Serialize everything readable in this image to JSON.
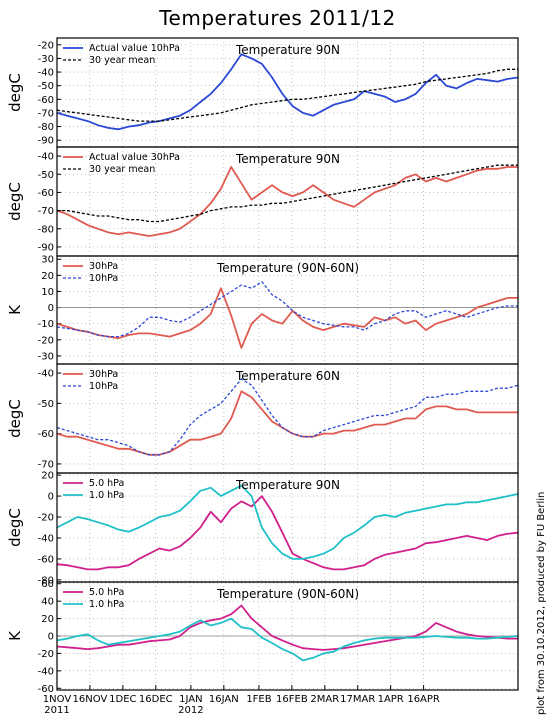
{
  "title": "Temperatures 2011/12",
  "credit": "plot from 30.10.2012, produced by FU Berlin",
  "colors": {
    "blue": "#2b49d6",
    "red": "#e05a50",
    "dash_black": "#000000",
    "dash_blue": "#2b49d6",
    "magenta": "#d0208c",
    "cyan": "#1fc0c8"
  },
  "chart_data": [
    {
      "type": "line",
      "ylabel": "degC",
      "panel_title": "Temperature 90N",
      "ylim": [
        -95,
        -15
      ],
      "yticks": [
        -90,
        -80,
        -70,
        -60,
        -50,
        -40,
        -30,
        -20
      ],
      "series": [
        {
          "name": "Actual value 10hPa",
          "style": "blue",
          "values": [
            -70,
            -72,
            -74,
            -76,
            -79,
            -81,
            -82,
            -80,
            -79,
            -77,
            -76,
            -74,
            -72,
            -68,
            -62,
            -56,
            -48,
            -38,
            -27,
            -30,
            -34,
            -44,
            -56,
            -65,
            -70,
            -72,
            -68,
            -64,
            -62,
            -60,
            -54,
            -56,
            -58,
            -62,
            -60,
            -56,
            -48,
            -42,
            -50,
            -52,
            -48,
            -45,
            -46,
            -47,
            -45,
            -44
          ]
        },
        {
          "name": "30 year mean",
          "style": "dash_black",
          "values": [
            -68,
            -69,
            -70,
            -71,
            -72,
            -73,
            -74,
            -75,
            -76,
            -76,
            -76,
            -75,
            -74,
            -73,
            -72,
            -71,
            -70,
            -68,
            -66,
            -64,
            -63,
            -62,
            -61,
            -60,
            -60,
            -59,
            -58,
            -57,
            -56,
            -55,
            -54,
            -53,
            -52,
            -51,
            -50,
            -49,
            -47,
            -46,
            -45,
            -44,
            -43,
            -42,
            -41,
            -39,
            -38,
            -38
          ]
        }
      ]
    },
    {
      "type": "line",
      "ylabel": "degC",
      "panel_title": "Temperature 90N",
      "ylim": [
        -95,
        -35
      ],
      "yticks": [
        -90,
        -80,
        -70,
        -60,
        -50,
        -40
      ],
      "series": [
        {
          "name": "Actual value 30hPa",
          "style": "red",
          "values": [
            -70,
            -72,
            -75,
            -78,
            -80,
            -82,
            -83,
            -82,
            -83,
            -84,
            -83,
            -82,
            -80,
            -76,
            -72,
            -66,
            -58,
            -46,
            -55,
            -64,
            -60,
            -56,
            -60,
            -62,
            -60,
            -56,
            -60,
            -64,
            -66,
            -68,
            -64,
            -60,
            -58,
            -56,
            -52,
            -50,
            -54,
            -52,
            -54,
            -52,
            -50,
            -48,
            -47,
            -47,
            -46,
            -46
          ]
        },
        {
          "name": "30 year mean",
          "style": "dash_black",
          "values": [
            -70,
            -70,
            -71,
            -72,
            -73,
            -73,
            -74,
            -75,
            -75,
            -76,
            -76,
            -75,
            -74,
            -73,
            -72,
            -70,
            -69,
            -68,
            -68,
            -67,
            -67,
            -66,
            -66,
            -65,
            -64,
            -63,
            -62,
            -61,
            -60,
            -59,
            -58,
            -57,
            -56,
            -55,
            -54,
            -53,
            -52,
            -51,
            -50,
            -49,
            -48,
            -47,
            -46,
            -45,
            -45,
            -45
          ]
        }
      ]
    },
    {
      "type": "line",
      "ylabel": "K",
      "panel_title": "Temperature (90N-60N)",
      "ylim": [
        -35,
        32
      ],
      "yticks": [
        -30,
        -20,
        -10,
        0,
        10,
        20,
        30
      ],
      "zero_line": true,
      "series": [
        {
          "name": "30hPa",
          "style": "red",
          "values": [
            -10,
            -12,
            -14,
            -15,
            -17,
            -18,
            -19,
            -17,
            -16,
            -16,
            -17,
            -18,
            -16,
            -14,
            -10,
            -4,
            12,
            -5,
            -25,
            -10,
            -4,
            -8,
            -10,
            -2,
            -8,
            -12,
            -14,
            -12,
            -10,
            -11,
            -12,
            -6,
            -8,
            -6,
            -10,
            -8,
            -14,
            -10,
            -8,
            -6,
            -4,
            0,
            2,
            4,
            6,
            6
          ]
        },
        {
          "name": "10hPa",
          "style": "dash_blue",
          "values": [
            -12,
            -13,
            -14,
            -15,
            -17,
            -18,
            -18,
            -16,
            -12,
            -6,
            -6,
            -8,
            -9,
            -6,
            -2,
            2,
            6,
            10,
            14,
            12,
            16,
            8,
            4,
            -2,
            -6,
            -8,
            -10,
            -11,
            -12,
            -12,
            -14,
            -10,
            -8,
            -4,
            -2,
            -2,
            -6,
            -4,
            -2,
            -4,
            -6,
            -4,
            -2,
            0,
            1,
            1
          ]
        }
      ]
    },
    {
      "type": "line",
      "ylabel": "degC",
      "panel_title": "Temperature 60N",
      "ylim": [
        -73,
        -37
      ],
      "yticks": [
        -70,
        -60,
        -50,
        -40
      ],
      "series": [
        {
          "name": "30hPa",
          "style": "red",
          "values": [
            -60,
            -61,
            -61,
            -62,
            -63,
            -64,
            -65,
            -65,
            -66,
            -67,
            -67,
            -66,
            -64,
            -62,
            -62,
            -61,
            -60,
            -55,
            -46,
            -48,
            -52,
            -56,
            -58,
            -60,
            -61,
            -61,
            -60,
            -60,
            -59,
            -59,
            -58,
            -57,
            -57,
            -56,
            -55,
            -55,
            -52,
            -51,
            -51,
            -52,
            -52,
            -53,
            -53,
            -53,
            -53,
            -53
          ]
        },
        {
          "name": "10hPa",
          "style": "dash_blue",
          "values": [
            -58,
            -59,
            -60,
            -61,
            -62,
            -62,
            -63,
            -64,
            -66,
            -67,
            -67,
            -66,
            -62,
            -57,
            -54,
            -52,
            -50,
            -46,
            -42,
            -44,
            -49,
            -54,
            -58,
            -60,
            -61,
            -61,
            -59,
            -58,
            -57,
            -56,
            -55,
            -54,
            -54,
            -53,
            -52,
            -51,
            -48,
            -48,
            -47,
            -47,
            -46,
            -46,
            -46,
            -45,
            -45,
            -44
          ]
        }
      ]
    },
    {
      "type": "line",
      "ylabel": "degC",
      "panel_title": "Temperature 90N",
      "ylim": [
        -82,
        22
      ],
      "yticks": [
        -80,
        -60,
        -40,
        -20,
        0,
        20
      ],
      "series": [
        {
          "name": "5.0 hPa",
          "style": "magenta",
          "values": [
            -65,
            -66,
            -68,
            -70,
            -70,
            -68,
            -68,
            -66,
            -60,
            -55,
            -50,
            -52,
            -48,
            -40,
            -30,
            -15,
            -25,
            -12,
            -5,
            -10,
            0,
            -15,
            -35,
            -55,
            -60,
            -64,
            -68,
            -70,
            -70,
            -68,
            -66,
            -60,
            -56,
            -54,
            -52,
            -50,
            -45,
            -44,
            -42,
            -40,
            -38,
            -40,
            -42,
            -38,
            -36,
            -35
          ]
        },
        {
          "name": "1.0 hPa",
          "style": "cyan",
          "values": [
            -30,
            -25,
            -20,
            -22,
            -25,
            -28,
            -32,
            -34,
            -30,
            -25,
            -20,
            -18,
            -14,
            -5,
            5,
            8,
            0,
            5,
            10,
            0,
            -30,
            -45,
            -55,
            -60,
            -60,
            -58,
            -55,
            -50,
            -40,
            -35,
            -28,
            -20,
            -18,
            -20,
            -16,
            -14,
            -12,
            -10,
            -8,
            -8,
            -6,
            -6,
            -4,
            -2,
            0,
            2
          ]
        }
      ]
    },
    {
      "type": "line",
      "ylabel": "K",
      "panel_title": "Temperature (90N-60N)",
      "ylim": [
        -62,
        62
      ],
      "yticks": [
        -60,
        -40,
        -20,
        0,
        20,
        40,
        60
      ],
      "zero_line": true,
      "series": [
        {
          "name": "5.0 hPa",
          "style": "magenta",
          "values": [
            -12,
            -13,
            -14,
            -15,
            -14,
            -12,
            -10,
            -10,
            -8,
            -6,
            -5,
            -4,
            0,
            10,
            15,
            18,
            20,
            25,
            35,
            20,
            10,
            0,
            -5,
            -10,
            -14,
            -15,
            -16,
            -15,
            -14,
            -12,
            -10,
            -8,
            -6,
            -4,
            -2,
            0,
            5,
            15,
            10,
            5,
            2,
            0,
            -1,
            -2,
            -3,
            -3
          ]
        },
        {
          "name": "1.0 hPa",
          "style": "cyan",
          "values": [
            -5,
            -3,
            0,
            2,
            -5,
            -10,
            -8,
            -6,
            -4,
            -2,
            0,
            2,
            5,
            12,
            18,
            12,
            15,
            20,
            10,
            8,
            -2,
            -8,
            -15,
            -20,
            -28,
            -25,
            -20,
            -18,
            -12,
            -8,
            -5,
            -3,
            -2,
            -2,
            -2,
            -2,
            -1,
            0,
            -1,
            -2,
            -2,
            -3,
            -3,
            -2,
            -1,
            0
          ]
        }
      ]
    }
  ],
  "x_axis": {
    "labels": [
      [
        "1NOV",
        "2011"
      ],
      [
        "16NOV",
        ""
      ],
      [
        "1DEC",
        ""
      ],
      [
        "16DEC",
        ""
      ],
      [
        "1JAN",
        "2012"
      ],
      [
        "16JAN",
        ""
      ],
      [
        "1FEB",
        ""
      ],
      [
        "16FEB",
        ""
      ],
      [
        "2MAR",
        ""
      ],
      [
        "17MAR",
        ""
      ],
      [
        "1APR",
        ""
      ],
      [
        "16APR",
        ""
      ]
    ],
    "label_days": [
      0,
      15,
      30,
      45,
      61,
      76,
      92,
      107,
      122,
      137,
      152,
      167
    ],
    "total_days": 210
  }
}
